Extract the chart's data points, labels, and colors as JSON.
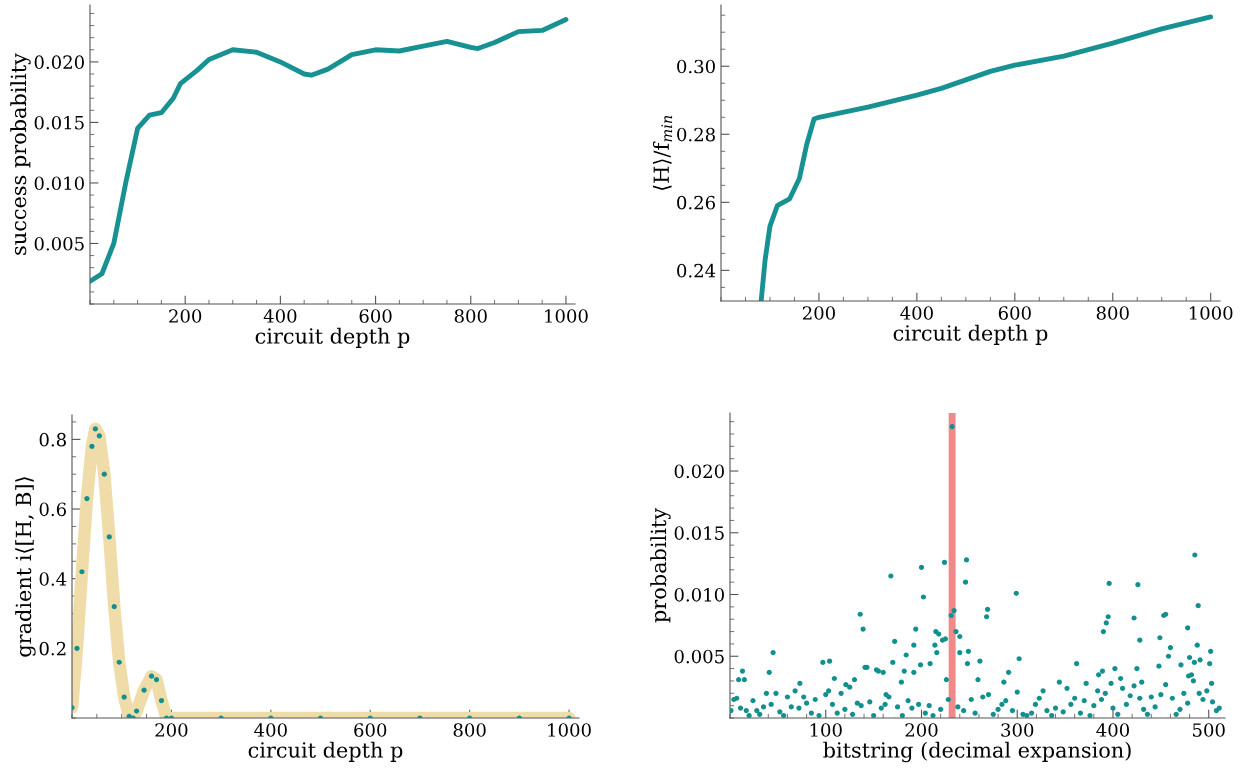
{
  "chart_data": [
    {
      "type": "line",
      "xlabel": "circuit depth p",
      "ylabel": "success probability",
      "xlim": [
        0,
        1019
      ],
      "ylim": [
        0,
        0.0247
      ],
      "xticks": [
        200,
        400,
        600,
        800,
        1000
      ],
      "yticks": [
        {
          "value": 0.005,
          "label": "0.005"
        },
        {
          "value": 0.01,
          "label": "0.010"
        },
        {
          "value": 0.015,
          "label": "0.015"
        },
        {
          "value": 0.02,
          "label": "0.020"
        }
      ],
      "grid": false,
      "legend": false,
      "series": [
        {
          "color": "#179191",
          "x": [
            1,
            25,
            50,
            75,
            100,
            125,
            150,
            175,
            190,
            225,
            250,
            300,
            350,
            400,
            450,
            465,
            500,
            550,
            600,
            650,
            700,
            750,
            800,
            815,
            850,
            900,
            950,
            1000
          ],
          "values": [
            0.0019,
            0.0025,
            0.005,
            0.01,
            0.0145,
            0.0156,
            0.0158,
            0.017,
            0.0182,
            0.0193,
            0.0202,
            0.021,
            0.0208,
            0.02,
            0.019,
            0.0189,
            0.0194,
            0.0206,
            0.021,
            0.0209,
            0.0213,
            0.0217,
            0.0212,
            0.0211,
            0.0216,
            0.0225,
            0.0226,
            0.0235
          ]
        }
      ]
    },
    {
      "type": "line",
      "xlabel": "circuit depth p",
      "ylabel": "⟨H⟩/f$_{min}$",
      "xlim": [
        0,
        1019
      ],
      "ylim": [
        0.231,
        0.318
      ],
      "xticks": [
        200,
        400,
        600,
        800,
        1000
      ],
      "yticks": [
        0.24,
        0.26,
        0.28,
        {
          "value": 0.3,
          "label": "0.30"
        }
      ],
      "grid": false,
      "legend": false,
      "series": [
        {
          "color": "#179191",
          "x": [
            82,
            90,
            100,
            115,
            140,
            160,
            175,
            190,
            200,
            300,
            400,
            450,
            500,
            550,
            600,
            700,
            800,
            900,
            1000
          ],
          "values": [
            0.231,
            0.243,
            0.253,
            0.259,
            0.261,
            0.267,
            0.277,
            0.2845,
            0.285,
            0.288,
            0.2915,
            0.2935,
            0.296,
            0.2985,
            0.3003,
            0.303,
            0.3068,
            0.311,
            0.3145
          ]
        }
      ]
    },
    {
      "type": "line",
      "xlabel": "circuit depth p",
      "ylabel": "gradient i⟨[H, B]⟩",
      "xlim": [
        0,
        1020
      ],
      "ylim": [
        0,
        0.87
      ],
      "xticks": [
        200,
        400,
        600,
        800,
        1000
      ],
      "yticks": [
        0.2,
        0.4,
        0.6,
        0.8
      ],
      "grid": false,
      "legend": false,
      "series": [
        {
          "color": "#f0dca8",
          "x": [
            0,
            10,
            20,
            30,
            40,
            47,
            55,
            65,
            75,
            85,
            95,
            105,
            115,
            123,
            130,
            145,
            160,
            170,
            180,
            190,
            200,
            300,
            400,
            500,
            600,
            700,
            800,
            900,
            1000
          ],
          "values": [
            0.03,
            0.2,
            0.42,
            0.63,
            0.78,
            0.83,
            0.81,
            0.7,
            0.52,
            0.32,
            0.16,
            0.06,
            0.005,
            0.0,
            0.02,
            0.08,
            0.12,
            0.11,
            0.05,
            0.0,
            0.0,
            0.0,
            0.0,
            0.0,
            0.0,
            0.0,
            0.0,
            0.0,
            0.0
          ]
        },
        {
          "type": "scatter",
          "color": "#138f8f",
          "x": [
            0,
            10,
            20,
            30,
            40,
            47,
            55,
            65,
            75,
            85,
            95,
            105,
            115,
            123,
            130,
            145,
            160,
            170,
            180,
            190,
            200,
            300,
            400,
            500,
            600,
            700,
            800,
            900,
            1000
          ],
          "values": [
            0.03,
            0.2,
            0.42,
            0.63,
            0.78,
            0.83,
            0.81,
            0.7,
            0.52,
            0.32,
            0.16,
            0.06,
            0.005,
            0.0,
            0.02,
            0.08,
            0.12,
            0.11,
            0.05,
            0.0,
            0.0,
            0.0,
            0.0,
            0.0,
            0.0,
            0.0,
            0.0,
            0.0,
            0.0
          ]
        }
      ]
    },
    {
      "type": "scatter",
      "xlabel": "bitstring (decimal expansion)",
      "ylabel": "probability",
      "xlim": [
        0,
        517
      ],
      "ylim": [
        0,
        0.0247
      ],
      "xticks": [
        100,
        200,
        300,
        400,
        500
      ],
      "yticks": [
        {
          "value": 0.005,
          "label": "0.005"
        },
        {
          "value": 0.01,
          "label": "0.010"
        },
        {
          "value": 0.015,
          "label": "0.015"
        },
        {
          "value": 0.02,
          "label": "0.020"
        }
      ],
      "grid": false,
      "legend": false,
      "marker": "circle",
      "ref_lines": [
        {
          "axis": "x",
          "value": 232,
          "label": null,
          "color": "#f08a8a"
        }
      ],
      "series": [
        {
          "color": "#138f8f",
          "x": [
            232,
            485.5,
            247,
            224,
            200,
            168,
            246,
            396,
            426,
            299,
            202,
            489,
            269,
            136,
            234,
            455,
            453,
            231,
            268,
            422,
            395,
            393,
            478,
            139,
            194,
            390,
            215,
            218,
            236,
            240,
            172,
            428,
            449,
            225,
            222,
            488,
            192,
            214,
            460,
            45,
            249,
            216,
            240,
            502,
            184,
            458,
            480,
            491,
            302,
            261,
            97,
            104,
            170,
            362,
            248,
            501,
            471,
            209,
            199,
            485,
            448,
            402,
            141,
            143,
            425,
            153,
            155,
            41,
            13,
            389,
            385,
            291,
            160,
            182,
            192,
            479,
            482,
            9,
            15,
            109,
            226,
            121,
            130,
            344,
            259,
            286,
            398,
            372,
            408,
            430,
            503,
            73,
            179,
            163,
            1,
            4,
            7,
            11,
            17,
            20,
            24,
            28,
            31,
            35,
            38,
            43,
            48,
            52,
            56,
            60,
            64,
            68,
            72,
            77,
            80,
            85,
            89,
            93,
            100,
            103,
            107,
            112,
            116,
            120,
            125,
            128,
            133,
            137,
            146,
            150,
            158,
            162,
            166,
            175,
            180,
            186,
            190,
            197,
            204,
            208,
            212,
            220,
            228,
            238,
            244,
            252,
            256,
            264,
            270,
            275,
            280,
            284,
            288,
            295,
            300,
            306,
            310,
            315,
            319,
            323,
            327,
            331,
            336,
            340,
            348,
            352,
            356,
            360,
            366,
            370,
            376,
            380,
            384,
            388,
            392,
            400,
            405,
            410,
            414,
            418,
            422,
            428,
            432,
            436,
            440,
            444,
            450,
            455,
            462,
            466,
            470,
            474,
            478,
            484,
            490,
            494,
            498,
            504,
            508,
            511
          ],
          "values": [
            0.0236,
            0.0132,
            0.0128,
            0.0126,
            0.0122,
            0.0115,
            0.011,
            0.0109,
            0.0108,
            0.0101,
            0.0098,
            0.0091,
            0.0088,
            0.0084,
            0.0087,
            0.0084,
            0.0083,
            0.0083,
            0.0082,
            0.0081,
            0.0082,
            0.0077,
            0.0073,
            0.0072,
            0.0072,
            0.007,
            0.007,
            0.0068,
            0.007,
            0.0066,
            0.0062,
            0.0063,
            0.0065,
            0.0064,
            0.0063,
            0.0059,
            0.0059,
            0.0059,
            0.0057,
            0.0053,
            0.0054,
            0.0053,
            0.0053,
            0.0054,
            0.0051,
            0.005,
            0.0049,
            0.0047,
            0.0048,
            0.0046,
            0.0045,
            0.0046,
            0.0045,
            0.0044,
            0.0044,
            0.0044,
            0.0043,
            0.0044,
            0.0043,
            0.0045,
            0.0042,
            0.004,
            0.0041,
            0.0041,
            0.004,
            0.0039,
            0.0038,
            0.0037,
            0.0038,
            0.0038,
            0.0035,
            0.0037,
            0.0037,
            0.0038,
            0.0037,
            0.0034,
            0.0035,
            0.0031,
            0.0031,
            0.0032,
            0.0031,
            0.0027,
            0.0031,
            0.0029,
            0.0031,
            0.0029,
            0.0028,
            0.0028,
            0.0032,
            0.0029,
            0.0028,
            0.0028,
            0.0029,
            0.0019,
            0.0006,
            0.0015,
            0.0016,
            0.0008,
            0.0006,
            0.0002,
            0.0014,
            0.0006,
            0.0003,
            0.0009,
            0.002,
            0.0011,
            0.002,
            0.0005,
            0.0002,
            0.0017,
            0.0009,
            0.0022,
            0.0008,
            0.0017,
            0.0012,
            0.0004,
            0.0015,
            0.0002,
            0.0019,
            0.0022,
            0.0011,
            0.0004,
            0.002,
            0.0007,
            0.0025,
            0.0003,
            0.0012,
            0.001,
            0.0013,
            0.0002,
            0.0008,
            0.0011,
            0.0017,
            0.0009,
            0.0002,
            0.0014,
            0.0008,
            0.0011,
            0.0004,
            0.001,
            0.0002,
            0.0007,
            0.0015,
            0.0009,
            0.0006,
            0.0015,
            0.0004,
            0.0017,
            0.0019,
            0.0003,
            0.0007,
            0.0011,
            0.0014,
            0.0006,
            0.0021,
            0.0003,
            0.0002,
            0.0004,
            0.0011,
            0.0016,
            0.0022,
            0.0006,
            0.0002,
            0.0008,
            0.0005,
            0.0024,
            0.0011,
            0.0016,
            0.0004,
            0.0014,
            0.0002,
            0.001,
            0.0022,
            0.0015,
            0.002,
            0.0008,
            0.0003,
            0.0024,
            0.0011,
            0.0018,
            0.0026,
            0.0016,
            0.0007,
            0.0003,
            0.0017,
            0.0009,
            0.0019,
            0.0027,
            0.0016,
            0.0003,
            0.0007,
            0.002,
            0.0012,
            0.003,
            0.002,
            0.0015,
            0.0022,
            0.0013,
            0.0006,
            0.0008
          ]
        }
      ]
    }
  ]
}
